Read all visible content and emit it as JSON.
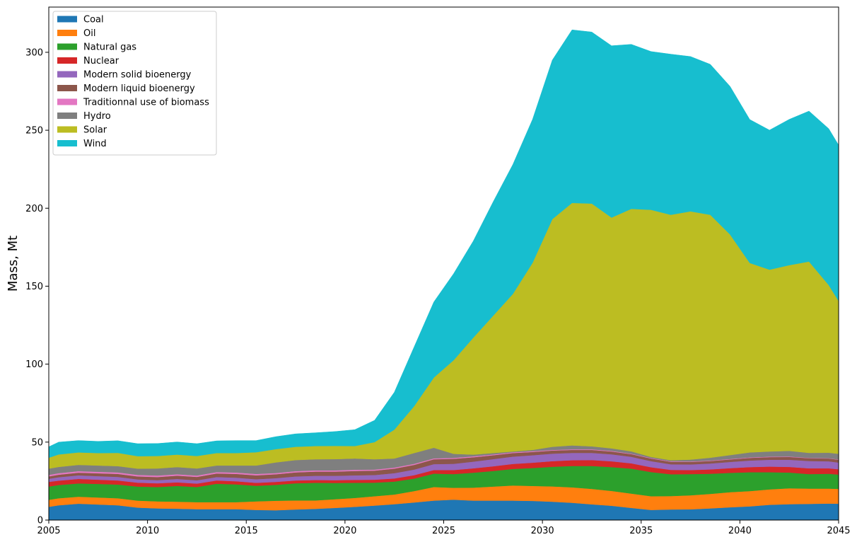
{
  "chart_data": {
    "type": "area",
    "stacked": true,
    "title": "",
    "xlabel": "",
    "ylabel": "Mass, Mt",
    "xlim": [
      2005,
      2045
    ],
    "ylim": [
      0,
      329
    ],
    "xticks": [
      2005,
      2010,
      2015,
      2020,
      2025,
      2030,
      2035,
      2040,
      2045
    ],
    "yticks": [
      0,
      50,
      100,
      150,
      200,
      250,
      300
    ],
    "grid": false,
    "legend": "top-left",
    "x": [
      2005,
      2005.5,
      2006.5,
      2007.5,
      2008.5,
      2009.5,
      2010.5,
      2011.5,
      2012.5,
      2013.5,
      2014.5,
      2015.5,
      2016.5,
      2017.5,
      2018.5,
      2019.5,
      2020.5,
      2021.5,
      2022.5,
      2023.5,
      2024.5,
      2025.5,
      2026.5,
      2027.5,
      2028.5,
      2029.5,
      2030.5,
      2031.5,
      2032.5,
      2033.5,
      2034.5,
      2035.5,
      2036.5,
      2037.5,
      2038.5,
      2039.5,
      2040.5,
      2041.5,
      2042.5,
      2043.5,
      2044.5,
      2045
    ],
    "series": [
      {
        "name": "Coal",
        "color": "#1f77b4",
        "values": [
          8.5,
          9.5,
          10.5,
          10,
          9.5,
          8,
          7.5,
          7.3,
          7,
          7,
          7,
          6.5,
          6.3,
          6.8,
          7.2,
          7.8,
          8.5,
          9.3,
          10.2,
          11.3,
          12.5,
          13.1,
          12.5,
          12.5,
          12.5,
          12.3,
          11.8,
          11.1,
          10.1,
          9.2,
          7.8,
          6.5,
          6.8,
          6.9,
          7.5,
          8.2,
          8.8,
          9.8,
          10.2,
          10.4,
          10.6,
          10.5
        ]
      },
      {
        "name": "Oil",
        "color": "#ff7f0e",
        "values": [
          4.5,
          4.5,
          4.5,
          4.5,
          4.5,
          4.5,
          4.5,
          4.5,
          4.5,
          4.5,
          4.5,
          5.5,
          6.1,
          5.8,
          5.4,
          5.6,
          5.7,
          6.0,
          6.2,
          7.3,
          8.7,
          7.6,
          8.3,
          9.0,
          9.7,
          9.6,
          9.8,
          9.9,
          9.9,
          9.5,
          9.2,
          8.8,
          8.6,
          9.0,
          9.3,
          9.7,
          9.8,
          9.9,
          10.2,
          9.8,
          9.6,
          9.5
        ]
      },
      {
        "name": "Natural gas",
        "color": "#2ca02c",
        "values": [
          8.5,
          8.5,
          8.5,
          8.7,
          8.8,
          9.0,
          9.2,
          10.1,
          9.7,
          11.8,
          11.4,
          10.0,
          10.2,
          11.0,
          11.3,
          10.4,
          9.7,
          8.7,
          8.3,
          8.0,
          8.6,
          8.8,
          9.6,
          10.0,
          10.6,
          11.5,
          12.6,
          13.7,
          14.7,
          15.3,
          16.0,
          15.5,
          14.0,
          13.6,
          12.9,
          12.4,
          12.1,
          11.0,
          10.1,
          9.3,
          9.5,
          9.2
        ]
      },
      {
        "name": "Nuclear",
        "color": "#d62728",
        "values": [
          3.0,
          2.8,
          2.9,
          2.7,
          2.6,
          2.5,
          2.4,
          2.3,
          2.2,
          2.1,
          2.0,
          1.9,
          1.9,
          1.8,
          1.8,
          1.8,
          1.9,
          1.9,
          2.0,
          2.2,
          2.3,
          2.6,
          2.8,
          3.0,
          3.2,
          3.4,
          3.6,
          3.7,
          3.8,
          3.7,
          3.4,
          3.1,
          2.8,
          2.6,
          2.8,
          3.0,
          3.3,
          3.6,
          3.6,
          3.7,
          3.5,
          3.4
        ]
      },
      {
        "name": "Modern solid bioenergy",
        "color": "#9467bd",
        "values": [
          2.0,
          2.2,
          2.3,
          2.3,
          2.3,
          2.1,
          2.0,
          2.2,
          2.1,
          2.2,
          2.3,
          2.3,
          2.4,
          2.6,
          2.7,
          2.8,
          2.9,
          3.0,
          3.4,
          3.6,
          3.8,
          4.0,
          4.3,
          4.6,
          4.7,
          4.8,
          4.8,
          4.7,
          4.6,
          4.5,
          4.2,
          3.9,
          3.6,
          3.6,
          3.8,
          4.0,
          4.2,
          4.4,
          4.6,
          4.7,
          4.5,
          4.3
        ]
      },
      {
        "name": "Modern liquid bioenergy",
        "color": "#8c564b",
        "values": [
          1.5,
          1.6,
          1.7,
          1.8,
          1.9,
          1.9,
          2.0,
          2.1,
          2.2,
          2.3,
          2.4,
          2.5,
          2.5,
          2.6,
          2.7,
          2.7,
          2.8,
          2.8,
          2.9,
          3.0,
          3.1,
          3.2,
          2.8,
          2.5,
          2.3,
          2.1,
          2.0,
          1.9,
          1.9,
          1.8,
          1.7,
          1.7,
          1.6,
          1.6,
          1.6,
          1.6,
          1.7,
          1.7,
          1.8,
          1.8,
          1.8,
          1.8
        ]
      },
      {
        "name": "Traditionnal use of biomass",
        "color": "#e377c2",
        "values": [
          1.0,
          1.0,
          1.0,
          1.0,
          1.0,
          1.0,
          1.0,
          0.9,
          0.9,
          0.9,
          0.9,
          0.9,
          0.8,
          0.8,
          0.8,
          0.8,
          0.8,
          0.7,
          0.7,
          0.7,
          0.6,
          0.6,
          0.6,
          0.5,
          0.5,
          0.5,
          0.4,
          0.4,
          0.4,
          0.4,
          0.3,
          0.3,
          0.3,
          0.3,
          0.3,
          0.3,
          0.3,
          0.3,
          0.3,
          0.2,
          0.2,
          0.2
        ]
      },
      {
        "name": "Hydro",
        "color": "#7f7f7f",
        "values": [
          4.0,
          4.0,
          4.0,
          4.0,
          4.0,
          4.0,
          4.5,
          4.6,
          4.5,
          4.2,
          4.5,
          5.4,
          6.8,
          7.1,
          7.1,
          7.2,
          7.2,
          6.6,
          5.8,
          6.9,
          6.8,
          2.6,
          1.1,
          0.9,
          0.5,
          0.8,
          2.0,
          2.5,
          1.9,
          1.6,
          1.5,
          0.7,
          0.7,
          1.2,
          1.8,
          2.5,
          3.2,
          3.3,
          3.6,
          3.2,
          3.5,
          3.6
        ]
      },
      {
        "name": "Solar",
        "color": "#bcbd22",
        "values": [
          7.0,
          8.0,
          8.0,
          8.0,
          8.5,
          8.0,
          8.0,
          8.0,
          8.0,
          8.0,
          8.0,
          8.5,
          8.5,
          8.5,
          8.5,
          8.5,
          8.0,
          11.0,
          18.5,
          30.0,
          45.0,
          60.0,
          75.0,
          88.0,
          101.0,
          120.0,
          146.0,
          155.5,
          155.7,
          148.0,
          155.5,
          158.5,
          157.4,
          159.2,
          155.8,
          141.5,
          121.5,
          116.6,
          119.1,
          122.7,
          107.5,
          98.0
        ]
      },
      {
        "name": "Wind",
        "color": "#17becf",
        "values": [
          7.0,
          7.9,
          7.6,
          7.5,
          7.8,
          8.0,
          8.0,
          8.1,
          7.9,
          7.8,
          8.0,
          7.5,
          8.0,
          8.3,
          8.5,
          9.2,
          10.5,
          14.0,
          24.0,
          38.0,
          48.5,
          55.5,
          62.0,
          73.0,
          83.0,
          92.0,
          102.0,
          111.0,
          110.0,
          110.2,
          105.5,
          101.5,
          103.0,
          99.3,
          96.5,
          95.0,
          92.0,
          89.5,
          93.5,
          96.5,
          100.3,
          100.0
        ]
      }
    ]
  }
}
